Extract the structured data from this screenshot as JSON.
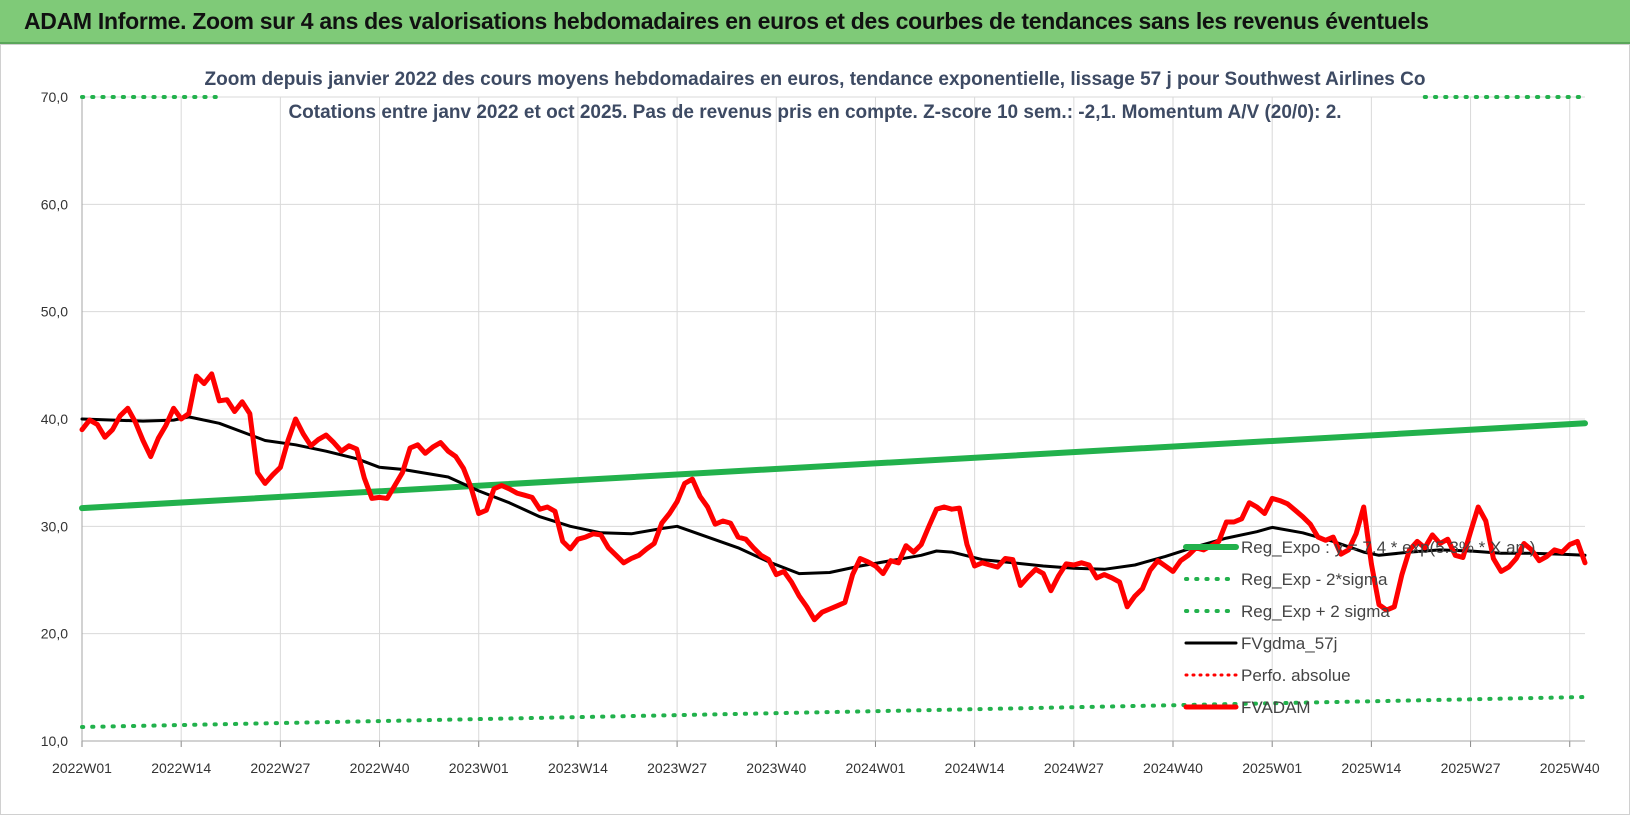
{
  "header": {
    "title": "ADAM Informe. Zoom sur 4 ans des valorisations hebdomadaires en euros et des courbes de tendances sans les revenus éventuels"
  },
  "chart_data": {
    "type": "line",
    "title": "Zoom depuis janvier 2022 des cours moyens hebdomadaires en euros, tendance exponentielle, lissage 57 j pour Southwest Airlines Co",
    "subtitle": "Cotations entre janv 2022 et oct 2025. Pas de revenus pris en compte. Z-score 10 sem.: -2,1. Momentum A/V (20/0): 2.",
    "xlabel": "",
    "ylabel": "",
    "ylim": [
      10,
      70
    ],
    "x_range": [
      0,
      197
    ],
    "grid": true,
    "legend_position": "right",
    "y_ticks": [
      "10,0",
      "20,0",
      "30,0",
      "40,0",
      "50,0",
      "60,0",
      "70,0"
    ],
    "x_ticks": [
      {
        "label": "2022W01",
        "x": 0
      },
      {
        "label": "2022W14",
        "x": 13
      },
      {
        "label": "2022W27",
        "x": 26
      },
      {
        "label": "2022W40",
        "x": 39
      },
      {
        "label": "2023W01",
        "x": 52
      },
      {
        "label": "2023W14",
        "x": 65
      },
      {
        "label": "2023W27",
        "x": 78
      },
      {
        "label": "2023W40",
        "x": 91
      },
      {
        "label": "2024W01",
        "x": 104
      },
      {
        "label": "2024W14",
        "x": 117
      },
      {
        "label": "2024W27",
        "x": 130
      },
      {
        "label": "2024W40",
        "x": 143
      },
      {
        "label": "2025W01",
        "x": 156
      },
      {
        "label": "2025W14",
        "x": 169
      },
      {
        "label": "2025W27",
        "x": 182
      },
      {
        "label": "2025W40",
        "x": 195
      }
    ],
    "series": [
      {
        "name": "Reg_Expo : y = 7.4 * exp(5.3% * X an )",
        "color": "#22b14c",
        "style": "solid",
        "width": 6,
        "points": [
          [
            0,
            31.7
          ],
          [
            197,
            39.6
          ]
        ]
      },
      {
        "name": "Reg_Exp - 2*sigma",
        "color": "#22b14c",
        "style": "dotted",
        "width": 4,
        "points": [
          [
            0,
            11.3
          ],
          [
            197,
            14.1
          ]
        ]
      },
      {
        "name": "Reg_Exp + 2 sigma",
        "color": "#22b14c",
        "style": "dotted",
        "width": 4,
        "points": [
          [
            0,
            70.0
          ],
          [
            18,
            70.0
          ],
          [
            null,
            null
          ],
          [
            176,
            70.0
          ],
          [
            197,
            70.0
          ]
        ]
      },
      {
        "name": "FVgdma_57j",
        "color": "#000000",
        "style": "solid",
        "width": 3,
        "points": [
          [
            0,
            40.0
          ],
          [
            8,
            39.8
          ],
          [
            12,
            39.9
          ],
          [
            14,
            40.2
          ],
          [
            18,
            39.6
          ],
          [
            24,
            38.0
          ],
          [
            28,
            37.6
          ],
          [
            32,
            37.0
          ],
          [
            36,
            36.3
          ],
          [
            39,
            35.5
          ],
          [
            42,
            35.3
          ],
          [
            48,
            34.6
          ],
          [
            52,
            33.3
          ],
          [
            56,
            32.2
          ],
          [
            60,
            30.9
          ],
          [
            64,
            30.0
          ],
          [
            68,
            29.4
          ],
          [
            72,
            29.3
          ],
          [
            76,
            29.8
          ],
          [
            78,
            30.0
          ],
          [
            82,
            29.0
          ],
          [
            86,
            28.0
          ],
          [
            90,
            26.7
          ],
          [
            94,
            25.6
          ],
          [
            98,
            25.7
          ],
          [
            102,
            26.3
          ],
          [
            106,
            26.8
          ],
          [
            110,
            27.3
          ],
          [
            112,
            27.7
          ],
          [
            114,
            27.6
          ],
          [
            118,
            26.9
          ],
          [
            122,
            26.6
          ],
          [
            126,
            26.3
          ],
          [
            130,
            26.1
          ],
          [
            134,
            26.0
          ],
          [
            138,
            26.4
          ],
          [
            142,
            27.2
          ],
          [
            146,
            28.1
          ],
          [
            150,
            28.9
          ],
          [
            154,
            29.5
          ],
          [
            156,
            29.9
          ],
          [
            160,
            29.4
          ],
          [
            164,
            28.6
          ],
          [
            168,
            27.6
          ],
          [
            170,
            27.3
          ],
          [
            174,
            27.6
          ],
          [
            178,
            27.8
          ],
          [
            182,
            27.7
          ],
          [
            186,
            27.5
          ],
          [
            190,
            27.5
          ],
          [
            194,
            27.4
          ],
          [
            197,
            27.3
          ]
        ]
      },
      {
        "name": "Perfo. absolue",
        "color": "#ff0000",
        "style": "dotted",
        "width": 3,
        "points": []
      },
      {
        "name": "FVADAM",
        "color": "#ff0000",
        "style": "solid",
        "width": 5,
        "points": [
          [
            0,
            39.0
          ],
          [
            1,
            39.9
          ],
          [
            2,
            39.5
          ],
          [
            3,
            38.3
          ],
          [
            4,
            39.0
          ],
          [
            5,
            40.3
          ],
          [
            6,
            41.0
          ],
          [
            7,
            39.7
          ],
          [
            8,
            38.0
          ],
          [
            9,
            36.5
          ],
          [
            10,
            38.2
          ],
          [
            11,
            39.4
          ],
          [
            12,
            41.0
          ],
          [
            13,
            40.0
          ],
          [
            14,
            40.5
          ],
          [
            15,
            44.0
          ],
          [
            16,
            43.3
          ],
          [
            17,
            44.2
          ],
          [
            18,
            41.7
          ],
          [
            19,
            41.8
          ],
          [
            20,
            40.7
          ],
          [
            21,
            41.6
          ],
          [
            22,
            40.5
          ],
          [
            23,
            35.0
          ],
          [
            24,
            34.0
          ],
          [
            25,
            34.8
          ],
          [
            26,
            35.5
          ],
          [
            27,
            38.0
          ],
          [
            28,
            40.0
          ],
          [
            29,
            38.6
          ],
          [
            30,
            37.5
          ],
          [
            31,
            38.1
          ],
          [
            32,
            38.5
          ],
          [
            33,
            37.8
          ],
          [
            34,
            37.0
          ],
          [
            35,
            37.5
          ],
          [
            36,
            37.2
          ],
          [
            37,
            34.5
          ],
          [
            38,
            32.6
          ],
          [
            39,
            32.7
          ],
          [
            40,
            32.6
          ],
          [
            41,
            33.8
          ],
          [
            42,
            35.0
          ],
          [
            43,
            37.3
          ],
          [
            44,
            37.6
          ],
          [
            45,
            36.8
          ],
          [
            46,
            37.4
          ],
          [
            47,
            37.8
          ],
          [
            48,
            37.0
          ],
          [
            49,
            36.5
          ],
          [
            50,
            35.4
          ],
          [
            51,
            33.6
          ],
          [
            52,
            31.2
          ],
          [
            53,
            31.5
          ],
          [
            54,
            33.5
          ],
          [
            55,
            33.8
          ],
          [
            56,
            33.5
          ],
          [
            57,
            33.1
          ],
          [
            58,
            32.9
          ],
          [
            59,
            32.7
          ],
          [
            60,
            31.6
          ],
          [
            61,
            31.8
          ],
          [
            62,
            31.4
          ],
          [
            63,
            28.6
          ],
          [
            64,
            27.9
          ],
          [
            65,
            28.8
          ],
          [
            66,
            29.0
          ],
          [
            67,
            29.3
          ],
          [
            68,
            29.2
          ],
          [
            69,
            28.0
          ],
          [
            70,
            27.3
          ],
          [
            71,
            26.6
          ],
          [
            72,
            27.0
          ],
          [
            73,
            27.3
          ],
          [
            74,
            27.9
          ],
          [
            75,
            28.4
          ],
          [
            76,
            30.3
          ],
          [
            77,
            31.2
          ],
          [
            78,
            32.3
          ],
          [
            79,
            34.0
          ],
          [
            80,
            34.4
          ],
          [
            81,
            32.8
          ],
          [
            82,
            31.8
          ],
          [
            83,
            30.2
          ],
          [
            84,
            30.5
          ],
          [
            85,
            30.3
          ],
          [
            86,
            29.0
          ],
          [
            87,
            28.8
          ],
          [
            88,
            28.0
          ],
          [
            89,
            27.3
          ],
          [
            90,
            26.9
          ],
          [
            91,
            25.5
          ],
          [
            92,
            25.8
          ],
          [
            93,
            24.8
          ],
          [
            94,
            23.5
          ],
          [
            95,
            22.5
          ],
          [
            96,
            21.3
          ],
          [
            97,
            22.0
          ],
          [
            98,
            22.3
          ],
          [
            99,
            22.6
          ],
          [
            100,
            22.9
          ],
          [
            101,
            25.5
          ],
          [
            102,
            27.0
          ],
          [
            103,
            26.7
          ],
          [
            104,
            26.3
          ],
          [
            105,
            25.6
          ],
          [
            106,
            26.8
          ],
          [
            107,
            26.6
          ],
          [
            108,
            28.2
          ],
          [
            109,
            27.6
          ],
          [
            110,
            28.3
          ],
          [
            111,
            30.0
          ],
          [
            112,
            31.6
          ],
          [
            113,
            31.8
          ],
          [
            114,
            31.6
          ],
          [
            115,
            31.7
          ],
          [
            116,
            28.3
          ],
          [
            117,
            26.3
          ],
          [
            118,
            26.6
          ],
          [
            119,
            26.4
          ],
          [
            120,
            26.2
          ],
          [
            121,
            27.0
          ],
          [
            122,
            26.9
          ],
          [
            123,
            24.5
          ],
          [
            124,
            25.3
          ],
          [
            125,
            26.0
          ],
          [
            126,
            25.6
          ],
          [
            127,
            24.0
          ],
          [
            128,
            25.4
          ],
          [
            129,
            26.5
          ],
          [
            130,
            26.4
          ],
          [
            131,
            26.6
          ],
          [
            132,
            26.4
          ],
          [
            133,
            25.2
          ],
          [
            134,
            25.5
          ],
          [
            135,
            25.2
          ],
          [
            136,
            24.8
          ],
          [
            137,
            22.5
          ],
          [
            138,
            23.5
          ],
          [
            139,
            24.2
          ],
          [
            140,
            25.9
          ],
          [
            141,
            26.8
          ],
          [
            142,
            26.3
          ],
          [
            143,
            25.8
          ],
          [
            144,
            26.8
          ],
          [
            145,
            27.3
          ],
          [
            146,
            28.0
          ],
          [
            147,
            27.8
          ],
          [
            148,
            28.2
          ],
          [
            149,
            28.6
          ],
          [
            150,
            30.4
          ],
          [
            151,
            30.4
          ],
          [
            152,
            30.7
          ],
          [
            153,
            32.2
          ],
          [
            154,
            31.8
          ],
          [
            155,
            31.2
          ],
          [
            156,
            32.6
          ],
          [
            157,
            32.4
          ],
          [
            158,
            32.1
          ],
          [
            159,
            31.5
          ],
          [
            160,
            30.9
          ],
          [
            161,
            30.2
          ],
          [
            162,
            29.0
          ],
          [
            163,
            28.7
          ],
          [
            164,
            29.0
          ],
          [
            165,
            27.4
          ],
          [
            166,
            27.8
          ],
          [
            167,
            29.3
          ],
          [
            168,
            31.8
          ],
          [
            169,
            26.5
          ],
          [
            170,
            22.7
          ],
          [
            171,
            22.2
          ],
          [
            172,
            22.5
          ],
          [
            173,
            25.5
          ],
          [
            174,
            27.8
          ],
          [
            175,
            28.6
          ],
          [
            176,
            28.0
          ],
          [
            177,
            29.2
          ],
          [
            178,
            28.4
          ],
          [
            179,
            28.8
          ],
          [
            180,
            27.3
          ],
          [
            181,
            27.1
          ],
          [
            182,
            29.5
          ],
          [
            183,
            31.8
          ],
          [
            184,
            30.5
          ],
          [
            185,
            27.0
          ],
          [
            186,
            25.8
          ],
          [
            187,
            26.2
          ],
          [
            188,
            27.0
          ],
          [
            189,
            28.4
          ],
          [
            190,
            27.8
          ],
          [
            191,
            26.8
          ],
          [
            192,
            27.2
          ],
          [
            193,
            27.8
          ],
          [
            194,
            27.6
          ],
          [
            195,
            28.3
          ],
          [
            196,
            28.6
          ],
          [
            197,
            26.6
          ]
        ]
      }
    ]
  }
}
